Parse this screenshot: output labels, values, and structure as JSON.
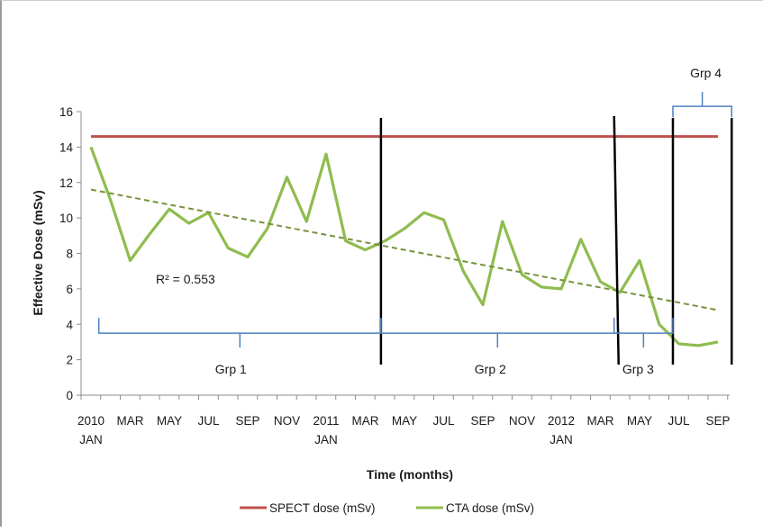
{
  "chart_data": {
    "type": "line",
    "xlabel": "Time (months)",
    "ylabel": "Effective Dose (mSv)",
    "ylim": [
      0,
      16
    ],
    "yticks": [
      0,
      2,
      4,
      6,
      8,
      10,
      12,
      14,
      16
    ],
    "x_tick_labels": [
      {
        "index": 0,
        "top": "2010",
        "bottom": "JAN"
      },
      {
        "index": 2,
        "top": "MAR",
        "bottom": ""
      },
      {
        "index": 4,
        "top": "MAY",
        "bottom": ""
      },
      {
        "index": 6,
        "top": "JUL",
        "bottom": ""
      },
      {
        "index": 8,
        "top": "SEP",
        "bottom": ""
      },
      {
        "index": 10,
        "top": "NOV",
        "bottom": ""
      },
      {
        "index": 12,
        "top": "2011",
        "bottom": "JAN"
      },
      {
        "index": 14,
        "top": "MAR",
        "bottom": ""
      },
      {
        "index": 16,
        "top": "MAY",
        "bottom": ""
      },
      {
        "index": 18,
        "top": "JUL",
        "bottom": ""
      },
      {
        "index": 20,
        "top": "SEP",
        "bottom": ""
      },
      {
        "index": 22,
        "top": "NOV",
        "bottom": ""
      },
      {
        "index": 24,
        "top": "2012",
        "bottom": "JAN"
      },
      {
        "index": 26,
        "top": "MAR",
        "bottom": ""
      },
      {
        "index": 28,
        "top": "MAY",
        "bottom": ""
      },
      {
        "index": 30,
        "top": "JUL",
        "bottom": ""
      },
      {
        "index": 32,
        "top": "SEP",
        "bottom": ""
      }
    ],
    "series": [
      {
        "name": "SPECT dose (mSv)",
        "color": "#c0504d",
        "values": [
          14.6,
          14.6,
          14.6,
          14.6,
          14.6,
          14.6,
          14.6,
          14.6,
          14.6,
          14.6,
          14.6,
          14.6,
          14.6,
          14.6,
          14.6,
          14.6,
          14.6,
          14.6,
          14.6,
          14.6,
          14.6,
          14.6,
          14.6,
          14.6,
          14.6,
          14.6,
          14.6,
          14.6,
          14.6,
          14.6,
          14.6,
          14.6,
          14.6
        ]
      },
      {
        "name": "CTA dose (mSv)",
        "color": "#8fbc4e",
        "values": [
          14.0,
          11.0,
          7.6,
          9.1,
          10.5,
          9.7,
          10.3,
          8.3,
          7.8,
          9.4,
          12.3,
          9.8,
          13.6,
          8.7,
          8.2,
          8.7,
          9.4,
          10.3,
          9.9,
          7.0,
          5.1,
          9.8,
          6.8,
          6.1,
          6.0,
          8.8,
          6.4,
          5.8,
          7.6,
          4.0,
          2.9,
          2.8,
          3.0
        ]
      }
    ],
    "trendline": {
      "series": "CTA dose (mSv)",
      "style": "dashed",
      "color": "#77933c",
      "start": [
        0,
        11.6
      ],
      "end": [
        32,
        4.8
      ],
      "label": "R² = 0.553"
    },
    "group_dividers": [
      14.8,
      26.7,
      29.7,
      32.7
    ],
    "groups": [
      {
        "label": "Grp 1",
        "from": 0.4,
        "to": 14.8,
        "level": 3.5
      },
      {
        "label": "Grp 2",
        "from": 14.8,
        "to": 26.7,
        "level": 3.5
      },
      {
        "label": "Grp 3",
        "from": 26.7,
        "to": 29.7,
        "level": 3.5
      },
      {
        "label": "Grp 4",
        "from": 29.7,
        "to": 32.7,
        "level": 16.3,
        "above": true
      }
    ],
    "legend_position": "bottom",
    "grid": false
  }
}
